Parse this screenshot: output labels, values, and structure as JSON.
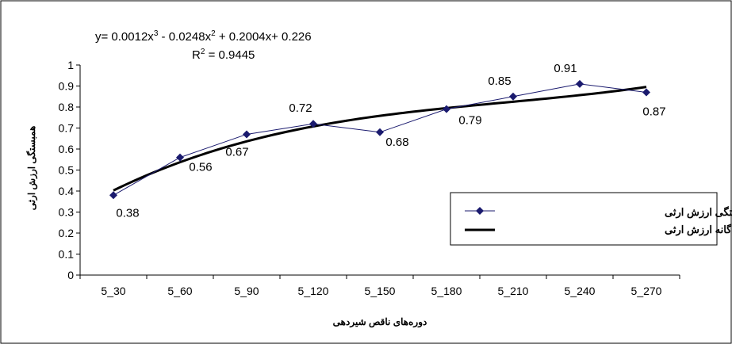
{
  "chart_data": {
    "type": "line",
    "categories": [
      "5_30",
      "5_60",
      "5_90",
      "5_120",
      "5_150",
      "5_180",
      "5_210",
      "5_240",
      "5_270"
    ],
    "series": [
      {
        "name": "همبستگی ارزش ارثی",
        "values": [
          0.38,
          0.56,
          0.67,
          0.72,
          0.68,
          0.79,
          0.85,
          0.91,
          0.87
        ],
        "color": "#1a1a6e",
        "marker": "diamond"
      },
      {
        "name": "همبستگی چند گانه ارزش ارثی",
        "trendline": "polynomial-3",
        "coefficients": [
          0.0012,
          -0.0248,
          0.2004,
          0.226
        ],
        "color": "#000000"
      }
    ],
    "data_labels": [
      "0.38",
      "0.56",
      "0.67",
      "0.72",
      "0.68",
      "0.79",
      "0.85",
      "0.91",
      "0.87"
    ],
    "equation": {
      "line1_prefix": "y= 0.0012x",
      "sup1": "3",
      "line1_mid": " - 0.0248x",
      "sup2": "2",
      "line1_suffix": " + 0.2004x+ 0.226",
      "r2_prefix": "R",
      "r2_sup": "2",
      "r2_suffix": " = 0.9445"
    },
    "xlabel": "دوره‌های ناقص شیردهی",
    "ylabel": "همبستگی ارزش ارثی",
    "ylim": [
      0,
      1
    ],
    "yticks": [
      "0",
      "0.1",
      "0.2",
      "0.3",
      "0.4",
      "0.5",
      "0.6",
      "0.7",
      "0.8",
      "0.9",
      "1"
    ],
    "grid": false,
    "legend": "right"
  }
}
